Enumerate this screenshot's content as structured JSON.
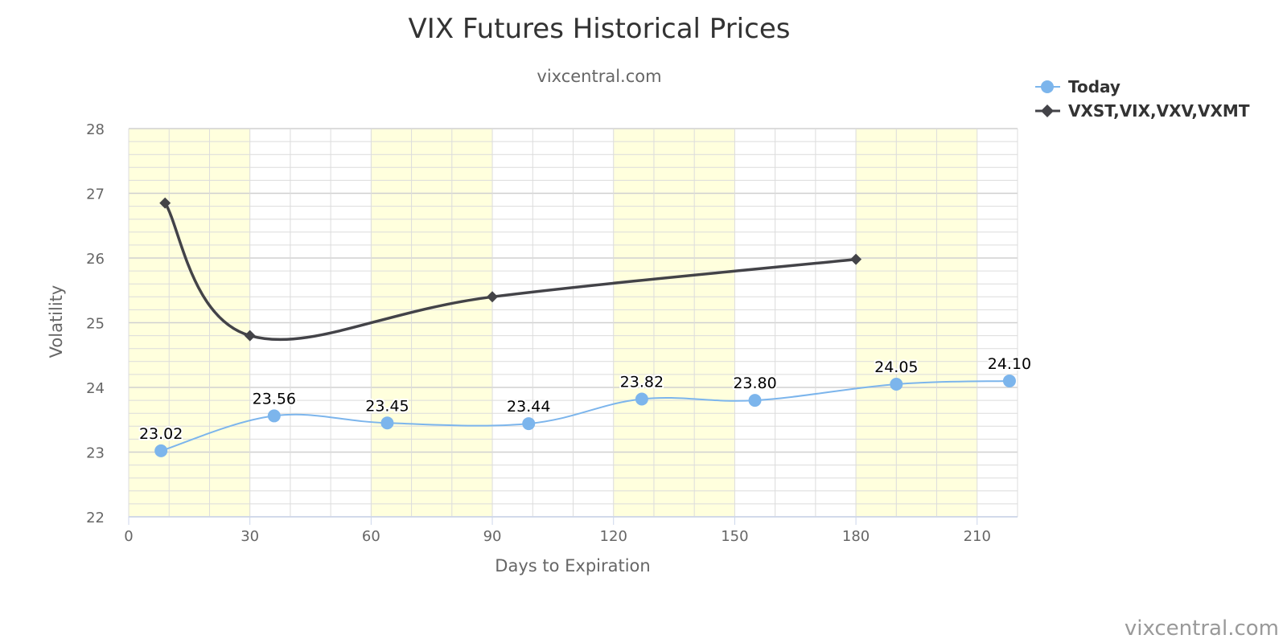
{
  "chart_data": {
    "type": "line",
    "title": "VIX Futures Historical Prices",
    "subtitle": "vixcentral.com",
    "xlabel": "Days to Expiration",
    "ylabel": "Volatility",
    "xlim": [
      0,
      220
    ],
    "ylim": [
      22,
      28
    ],
    "x_ticks": [
      "0",
      "30",
      "60",
      "90",
      "120",
      "150",
      "180",
      "210"
    ],
    "y_ticks": [
      "22",
      "23",
      "24",
      "25",
      "26",
      "27",
      "28"
    ],
    "grid": true,
    "legend": "top-right",
    "shaded_bands": [
      [
        0,
        30
      ],
      [
        60,
        90
      ],
      [
        120,
        150
      ],
      [
        180,
        210
      ]
    ],
    "series": [
      {
        "name": "Today",
        "color": "#7cb5ec",
        "marker": "circle",
        "x": [
          8,
          36,
          64,
          99,
          127,
          155,
          190,
          218
        ],
        "values": [
          23.02,
          23.56,
          23.45,
          23.44,
          23.82,
          23.8,
          24.05,
          24.1
        ],
        "labels": [
          "23.02",
          "23.56",
          "23.45",
          "23.44",
          "23.82",
          "23.80",
          "24.05",
          "24.10"
        ]
      },
      {
        "name": "VXST,VIX,VXV,VXMT",
        "color": "#434348",
        "marker": "diamond",
        "x": [
          9,
          30,
          90,
          180
        ],
        "values": [
          26.85,
          24.8,
          25.4,
          25.98
        ]
      }
    ],
    "credit": "vixcentral.com"
  }
}
